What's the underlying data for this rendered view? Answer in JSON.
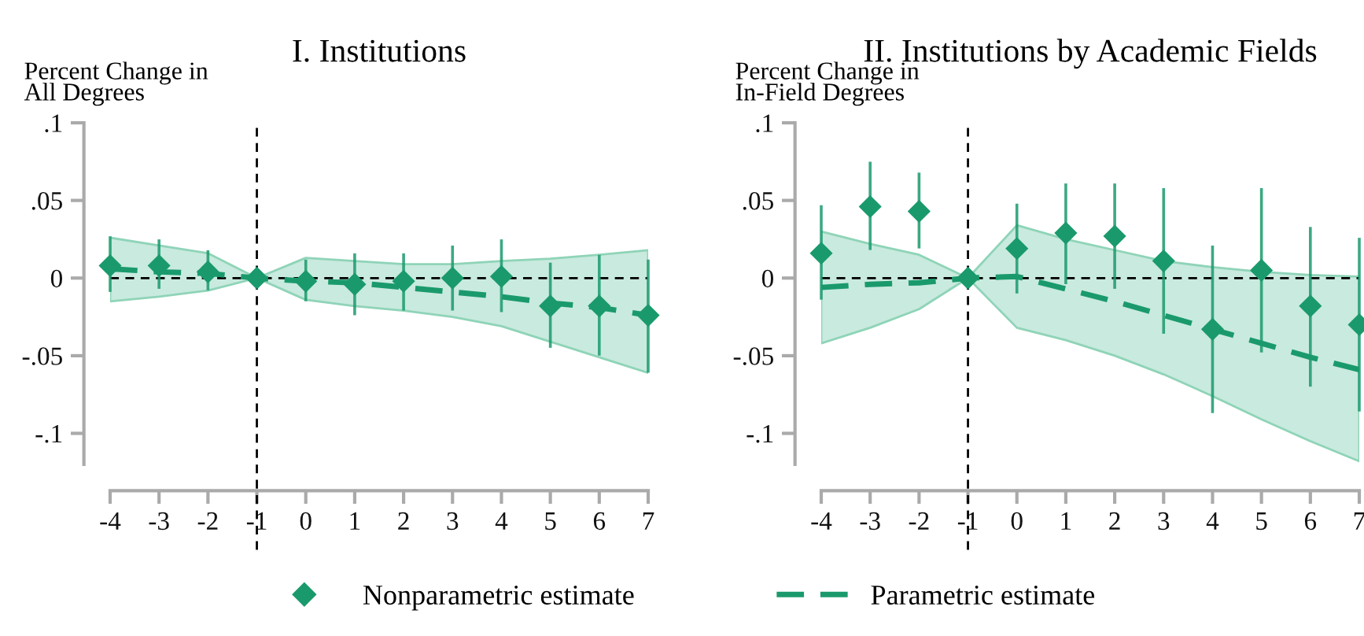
{
  "chart_data": [
    {
      "type": "scatter",
      "title": "I. Institutions",
      "ylabel": "Percent Change in\nAll Degrees",
      "legend": "bottom",
      "x": [
        -4,
        -3,
        -2,
        -1,
        0,
        1,
        2,
        3,
        4,
        5,
        6,
        7
      ],
      "xlim": [
        -4,
        7
      ],
      "xticks": [
        -4,
        -3,
        -2,
        -1,
        0,
        1,
        2,
        3,
        4,
        5,
        6,
        7
      ],
      "ylim": [
        -0.12,
        0.1
      ],
      "yticks": [
        {
          "value": -0.1,
          "label": "-.1"
        },
        {
          "value": -0.05,
          "label": "-.05"
        },
        {
          "value": 0,
          "label": "0"
        },
        {
          "value": 0.05,
          "label": ".05"
        },
        {
          "value": 0.1,
          "label": ".1"
        }
      ],
      "grid": false,
      "ref_lines": [
        {
          "axis": "x",
          "value": -1,
          "color": "#000000",
          "line_style": "dashed"
        },
        {
          "axis": "y",
          "value": 0,
          "color": "#000000",
          "line_style": "dashed"
        }
      ],
      "series": [
        {
          "name": "Nonparametric estimate",
          "marker": "diamond",
          "color": "#1a9a6c",
          "values": [
            0.008,
            0.008,
            0.004,
            0,
            -0.002,
            -0.004,
            -0.002,
            0.0,
            0.001,
            -0.018,
            -0.018,
            -0.024
          ],
          "errors": [
            [
              -0.008,
              0.026
            ],
            [
              -0.006,
              0.024
            ],
            [
              -0.007,
              0.017
            ],
            null,
            [
              -0.014,
              0.011
            ],
            [
              -0.023,
              0.015
            ],
            [
              -0.02,
              0.015
            ],
            [
              -0.02,
              0.02
            ],
            [
              -0.021,
              0.024
            ],
            [
              -0.044,
              0.009
            ],
            [
              -0.049,
              0.014
            ],
            [
              -0.06,
              0.011
            ]
          ]
        },
        {
          "name": "Parametric estimate",
          "type": "line",
          "line_style": "dashed",
          "color": "#1a9a6c",
          "values": [
            0.006,
            0.004,
            0.003,
            0,
            -0.002,
            -0.003,
            -0.006,
            -0.009,
            -0.012,
            -0.016,
            -0.019,
            -0.024
          ],
          "lower": [
            -0.015,
            -0.012,
            -0.008,
            0,
            -0.014,
            -0.018,
            -0.021,
            -0.025,
            -0.031,
            -0.041,
            -0.051,
            -0.061
          ],
          "upper": [
            0.026,
            0.021,
            0.016,
            0,
            0.013,
            0.011,
            0.009,
            0.009,
            0.011,
            0.0125,
            0.015,
            0.018
          ]
        }
      ]
    },
    {
      "type": "scatter",
      "title": "II. Institutions by Academic Fields",
      "ylabel": "Percent Change in\nIn-Field Degrees",
      "x": [
        -4,
        -3,
        -2,
        -1,
        0,
        1,
        2,
        3,
        4,
        5,
        6,
        7
      ],
      "xlim": [
        -4,
        7
      ],
      "xticks": [
        -4,
        -3,
        -2,
        -1,
        0,
        1,
        2,
        3,
        4,
        5,
        6,
        7
      ],
      "ylim": [
        -0.12,
        0.1
      ],
      "yticks": [
        {
          "value": -0.1,
          "label": "-.1"
        },
        {
          "value": -0.05,
          "label": "-.05"
        },
        {
          "value": 0,
          "label": "0"
        },
        {
          "value": 0.05,
          "label": ".05"
        },
        {
          "value": 0.1,
          "label": ".1"
        }
      ],
      "grid": false,
      "ref_lines": [
        {
          "axis": "x",
          "value": -1,
          "color": "#000000",
          "line_style": "dashed"
        },
        {
          "axis": "y",
          "value": 0,
          "color": "#000000",
          "line_style": "dashed"
        }
      ],
      "series": [
        {
          "marker": "diamond",
          "color": "#1a9a6c",
          "values": [
            0.016,
            0.046,
            0.043,
            0,
            0.019,
            0.029,
            0.027,
            0.011,
            -0.033,
            0.005,
            -0.018,
            -0.03
          ],
          "errors": [
            [
              -0.013,
              0.046
            ],
            [
              0.019,
              0.074
            ],
            [
              0.02,
              0.067
            ],
            null,
            [
              -0.009,
              0.047
            ],
            [
              -0.003,
              0.06
            ],
            [
              -0.006,
              0.06
            ],
            [
              -0.035,
              0.057
            ],
            [
              -0.086,
              0.02
            ],
            [
              -0.047,
              0.057
            ],
            [
              -0.069,
              0.032
            ],
            [
              -0.085,
              0.025
            ]
          ]
        },
        {
          "type": "line",
          "line_style": "dashed",
          "color": "#1a9a6c",
          "values": [
            -0.006,
            -0.004,
            -0.003,
            0,
            0.001,
            -0.007,
            -0.015,
            -0.024,
            -0.033,
            -0.042,
            -0.051,
            -0.059
          ],
          "lower": [
            -0.042,
            -0.032,
            -0.02,
            0,
            -0.032,
            -0.04,
            -0.05,
            -0.062,
            -0.076,
            -0.091,
            -0.105,
            -0.118
          ],
          "upper": [
            0.03,
            0.022,
            0.015,
            0,
            0.034,
            0.025,
            0.018,
            0.011,
            0.007,
            0.004,
            0.002,
            0.001
          ]
        }
      ]
    }
  ]
}
